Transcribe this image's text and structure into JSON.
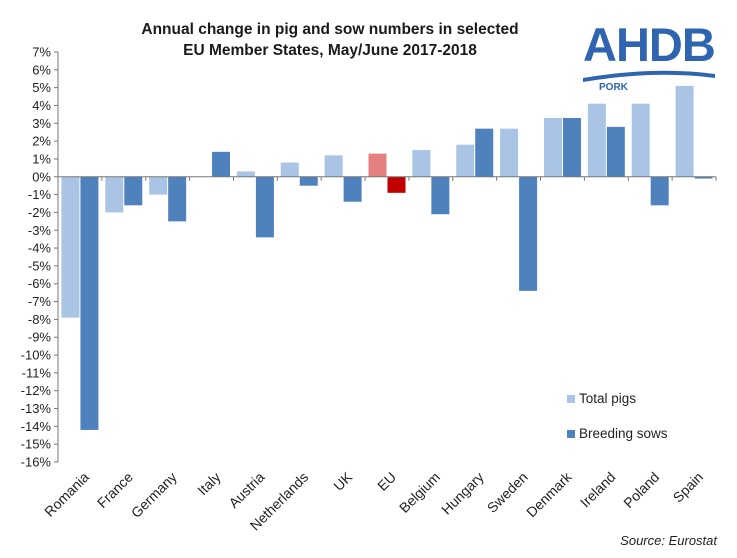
{
  "title_line1": "Annual change in pig and sow numbers in selected",
  "title_line2": "EU Member States, May/June 2017-2018",
  "logo": {
    "name": "AHDB",
    "sub": "PORK",
    "color": "#2e64b0"
  },
  "source": "Source: Eurostat",
  "chart_data": {
    "type": "bar",
    "title": "Annual change in pig and sow numbers in selected EU Member States, May/June 2017-2018",
    "categories": [
      "Romania",
      "France",
      "Germany",
      "Italy",
      "Austria",
      "Netherlands",
      "UK",
      "EU",
      "Belgium",
      "Hungary",
      "Sweden",
      "Denmark",
      "Ireland",
      "Poland",
      "Spain"
    ],
    "series": [
      {
        "name": "Total pigs",
        "color": "#a9c4e4",
        "highlight_color": "#e48080",
        "values": [
          -7.9,
          -2.0,
          -1.0,
          0.0,
          0.3,
          0.8,
          1.2,
          1.3,
          1.5,
          1.8,
          2.7,
          3.3,
          4.1,
          4.1,
          5.1
        ]
      },
      {
        "name": "Breeding sows",
        "color": "#4f81bd",
        "highlight_color": "#c00000",
        "values": [
          -14.2,
          -1.6,
          -2.5,
          1.4,
          -3.4,
          -0.5,
          -1.4,
          -0.9,
          -2.1,
          2.7,
          -6.4,
          3.3,
          2.8,
          -1.6,
          -0.1
        ]
      }
    ],
    "highlight_category": "EU",
    "ylim": [
      -16,
      7
    ],
    "y_tick_step": 1,
    "y_tick_format": "percent",
    "legend_position": "bottom-right",
    "grid": false
  }
}
